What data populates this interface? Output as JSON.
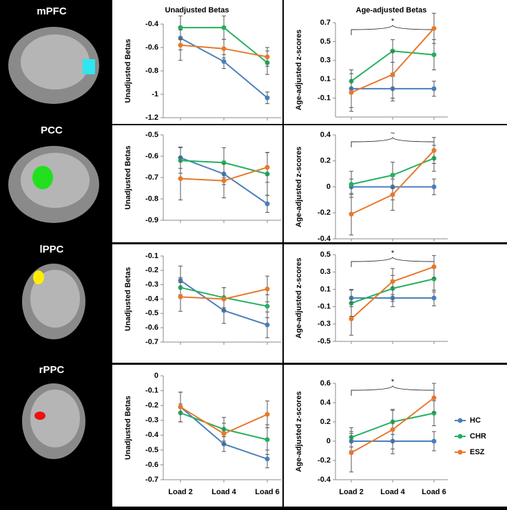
{
  "regions": [
    "mPFC",
    "PCC",
    "lPPC",
    "rPPC"
  ],
  "chart_data": [
    {
      "type": "line",
      "title": "Unadjusted Betas",
      "y_label": "Unadjusted Betas",
      "categories": [
        null,
        null,
        null
      ],
      "ylim": [
        -1.2,
        -0.4
      ],
      "yticks": [
        -1.2,
        -1,
        -0.8,
        -0.6,
        -0.4
      ],
      "series": [
        {
          "color": "#4a7ebb",
          "values": [
            -0.52,
            -0.72,
            -1.03
          ],
          "errors": [
            0.1,
            0.06,
            0.05
          ]
        },
        {
          "color": "#23b05e",
          "values": [
            -0.43,
            -0.43,
            -0.73
          ],
          "errors": [
            0.1,
            0.1,
            0.1
          ]
        },
        {
          "color": "#e8782a",
          "values": [
            -0.58,
            -0.61,
            -0.68
          ],
          "errors": [
            0.13,
            0.08,
            0.08
          ]
        }
      ]
    },
    {
      "type": "line",
      "title": "Age-adjusted Betas",
      "y_label": "Age-adjusted z-scores",
      "annotation": "*",
      "categories": [
        null,
        null,
        null
      ],
      "ylim": [
        -0.3,
        0.7
      ],
      "yticks": [
        -0.1,
        0.1,
        0.3,
        0.5,
        0.7
      ],
      "series": [
        {
          "color": "#4a7ebb",
          "values": [
            0,
            0,
            0
          ],
          "errors": [
            0.2,
            0.13,
            0.08
          ]
        },
        {
          "color": "#23b05e",
          "values": [
            0.08,
            0.4,
            0.36
          ],
          "errors": [
            0.12,
            0.12,
            0.16
          ]
        },
        {
          "color": "#e8782a",
          "values": [
            -0.04,
            0.15,
            0.64
          ],
          "errors": [
            0.2,
            0.25,
            0.16
          ]
        }
      ]
    },
    {
      "type": "line",
      "y_label": "Unadjusted Betas",
      "categories": [
        null,
        null,
        null
      ],
      "ylim": [
        -0.9,
        -0.5
      ],
      "yticks": [
        -0.9,
        -0.8,
        -0.7,
        -0.6,
        -0.5
      ],
      "series": [
        {
          "color": "#4a7ebb",
          "values": [
            -0.607,
            -0.683,
            -0.823
          ],
          "errors": [
            0.05,
            0.05,
            0.04
          ]
        },
        {
          "color": "#23b05e",
          "values": [
            -0.62,
            -0.63,
            -0.683
          ],
          "errors": [
            0.06,
            0.07,
            0.1
          ]
        },
        {
          "color": "#e8782a",
          "values": [
            -0.705,
            -0.715,
            -0.652
          ],
          "errors": [
            0.1,
            0.08,
            0.07
          ]
        }
      ]
    },
    {
      "type": "line",
      "y_label": "Age-adjusted z-scores",
      "annotation": "~",
      "categories": [
        null,
        null,
        null
      ],
      "ylim": [
        -0.4,
        0.4
      ],
      "yticks": [
        -0.4,
        -0.2,
        0,
        0.2,
        0.4
      ],
      "series": [
        {
          "color": "#4a7ebb",
          "values": [
            0,
            0,
            0
          ],
          "errors": [
            0.06,
            0.1,
            0.06
          ]
        },
        {
          "color": "#23b05e",
          "values": [
            0.02,
            0.09,
            0.22
          ],
          "errors": [
            0.1,
            0.1,
            0.1
          ]
        },
        {
          "color": "#e8782a",
          "values": [
            -0.21,
            -0.06,
            0.28
          ],
          "errors": [
            0.16,
            0.12,
            0.1
          ]
        }
      ]
    },
    {
      "type": "line",
      "y_label": "Unadjusted Betas",
      "categories": [
        null,
        null,
        null
      ],
      "ylim": [
        -0.7,
        -0.1
      ],
      "yticks": [
        -0.7,
        -0.6,
        -0.5,
        -0.4,
        -0.3,
        -0.2,
        -0.1
      ],
      "series": [
        {
          "color": "#4a7ebb",
          "values": [
            -0.27,
            -0.48,
            -0.58
          ],
          "errors": [
            0.1,
            0.09,
            0.09
          ]
        },
        {
          "color": "#23b05e",
          "values": [
            -0.32,
            -0.39,
            -0.45
          ],
          "errors": [
            0.07,
            0.07,
            0.08
          ]
        },
        {
          "color": "#e8782a",
          "values": [
            -0.385,
            -0.4,
            -0.33
          ],
          "errors": [
            0.1,
            0.08,
            0.09
          ]
        }
      ]
    },
    {
      "type": "line",
      "y_label": "Age-adjusted z-scores",
      "annotation": "*",
      "categories": [
        null,
        null,
        null
      ],
      "ylim": [
        -0.5,
        0.5
      ],
      "yticks": [
        -0.5,
        -0.3,
        -0.1,
        0.1,
        0.3,
        0.5
      ],
      "series": [
        {
          "color": "#4a7ebb",
          "values": [
            0,
            0,
            0
          ],
          "errors": [
            0.1,
            0.1,
            0.09
          ]
        },
        {
          "color": "#23b05e",
          "values": [
            -0.06,
            0.11,
            0.22
          ],
          "errors": [
            0.15,
            0.15,
            0.15
          ]
        },
        {
          "color": "#e8782a",
          "values": [
            -0.24,
            0.19,
            0.36
          ],
          "errors": [
            0.19,
            0.15,
            0.13
          ]
        }
      ]
    },
    {
      "type": "line",
      "y_label": "Unadjusted Betas",
      "categories": [
        "Load 2",
        "Load 4",
        "Load 6"
      ],
      "ylim": [
        -0.7,
        0
      ],
      "yticks": [
        -0.7,
        -0.6,
        -0.5,
        -0.4,
        -0.3,
        -0.2,
        -0.1,
        0
      ],
      "series": [
        {
          "color": "#4a7ebb",
          "values": [
            -0.21,
            -0.46,
            -0.56
          ],
          "errors": [
            0.1,
            0.05,
            0.06
          ]
        },
        {
          "color": "#23b05e",
          "values": [
            -0.25,
            -0.36,
            -0.43
          ],
          "errors": [
            0.06,
            0.08,
            0.1
          ]
        },
        {
          "color": "#e8782a",
          "values": [
            -0.21,
            -0.39,
            -0.26
          ],
          "errors": [
            0.1,
            0.07,
            0.09
          ]
        }
      ]
    },
    {
      "type": "line",
      "y_label": "Age-adjusted z-scores",
      "annotation": "*",
      "categories": [
        "Load 2",
        "Load 4",
        "Load 6"
      ],
      "ylim": [
        -0.4,
        0.6
      ],
      "yticks": [
        -0.4,
        -0.2,
        0,
        0.2,
        0.4,
        0.6
      ],
      "series": [
        {
          "name": "HC",
          "color": "#4a7ebb",
          "values": [
            0,
            0,
            0
          ],
          "errors": [
            0.1,
            0.13,
            0.1
          ]
        },
        {
          "name": "CHR",
          "color": "#23b05e",
          "values": [
            0.04,
            0.2,
            0.29
          ],
          "errors": [
            0.1,
            0.13,
            0.13
          ]
        },
        {
          "name": "ESZ",
          "color": "#e8782a",
          "values": [
            -0.12,
            0.12,
            0.45
          ],
          "errors": [
            0.2,
            0.2,
            0.15
          ]
        }
      ]
    }
  ]
}
